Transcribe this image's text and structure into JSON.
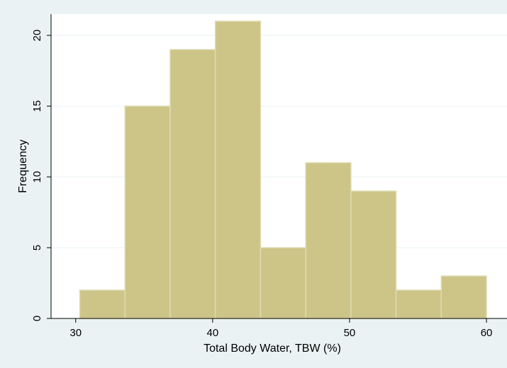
{
  "chart_data": {
    "type": "bar",
    "xlabel": "Total Body Water, TBW (%)",
    "ylabel": "Frequency",
    "bins": [
      {
        "start": 30.3,
        "end": 33.6,
        "value": 2
      },
      {
        "start": 33.6,
        "end": 36.9,
        "value": 15
      },
      {
        "start": 36.9,
        "end": 40.2,
        "value": 19
      },
      {
        "start": 40.2,
        "end": 43.5,
        "value": 21
      },
      {
        "start": 43.5,
        "end": 46.8,
        "value": 5
      },
      {
        "start": 46.8,
        "end": 50.1,
        "value": 11
      },
      {
        "start": 50.1,
        "end": 53.4,
        "value": 9
      },
      {
        "start": 53.4,
        "end": 56.7,
        "value": 2
      },
      {
        "start": 56.7,
        "end": 60.0,
        "value": 3
      }
    ],
    "xticks": [
      30,
      40,
      50,
      60
    ],
    "yticks": [
      0,
      5,
      10,
      15,
      20
    ],
    "xlim": [
      28.2,
      61.5
    ],
    "ylim": [
      0,
      21.5
    ],
    "grid": true,
    "colors": {
      "bar_fill": "#cdc487",
      "bar_stroke": "#dedbb2",
      "plot_bg": "#ffffff",
      "outer_bg": "#eaf2f3",
      "grid": "#eaf2f3",
      "axis": "#000000"
    }
  }
}
